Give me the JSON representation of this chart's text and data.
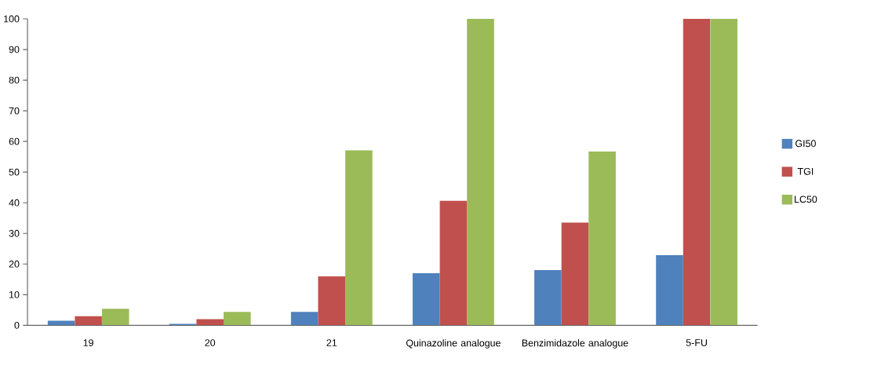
{
  "chart_data": {
    "type": "bar",
    "categories": [
      "19",
      "20",
      "21",
      "Quinazoline analogue",
      "Benzimidazole analogue",
      "5-FU"
    ],
    "series": [
      {
        "name": "GI50",
        "color": "#4f81bd",
        "values": [
          1.5,
          0.5,
          4.4,
          17.0,
          18.0,
          22.9
        ]
      },
      {
        "name": "TGI",
        "color": "#c0504d",
        "values": [
          3.0,
          2.0,
          16.0,
          40.6,
          33.5,
          100
        ]
      },
      {
        "name": "LC50",
        "color": "#9bbb59",
        "values": [
          5.4,
          4.4,
          57.1,
          100,
          56.7,
          100
        ]
      }
    ],
    "ylim": [
      0,
      100
    ],
    "yticks": [
      0,
      10,
      20,
      30,
      40,
      50,
      60,
      70,
      80,
      90,
      100
    ],
    "legend": "right"
  }
}
